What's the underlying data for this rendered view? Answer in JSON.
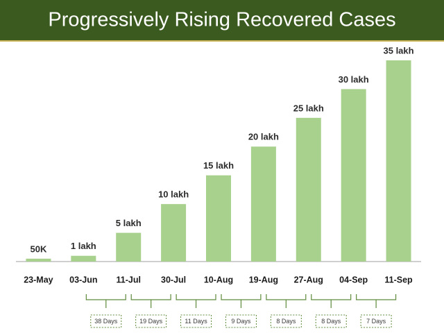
{
  "chart_data": {
    "type": "bar",
    "title": "Progressively Rising Recovered Cases",
    "categories": [
      "23-May",
      "03-Jun",
      "11-Jul",
      "30-Jul",
      "10-Aug",
      "19-Aug",
      "27-Aug",
      "04-Sep",
      "11-Sep"
    ],
    "values": [
      50000,
      100000,
      500000,
      1000000,
      1500000,
      2000000,
      2500000,
      3000000,
      3500000
    ],
    "value_labels": [
      "50K",
      "1 lakh",
      "5 lakh",
      "10 lakh",
      "15 lakh",
      "20 lakh",
      "25 lakh",
      "30 lakh",
      "35 lakh"
    ],
    "color": "#a9d18e",
    "annotations": [
      "38 Days",
      "19 Days",
      "11 Days",
      "9 Days",
      "8 Days",
      "8 Days",
      "7 Days"
    ]
  }
}
